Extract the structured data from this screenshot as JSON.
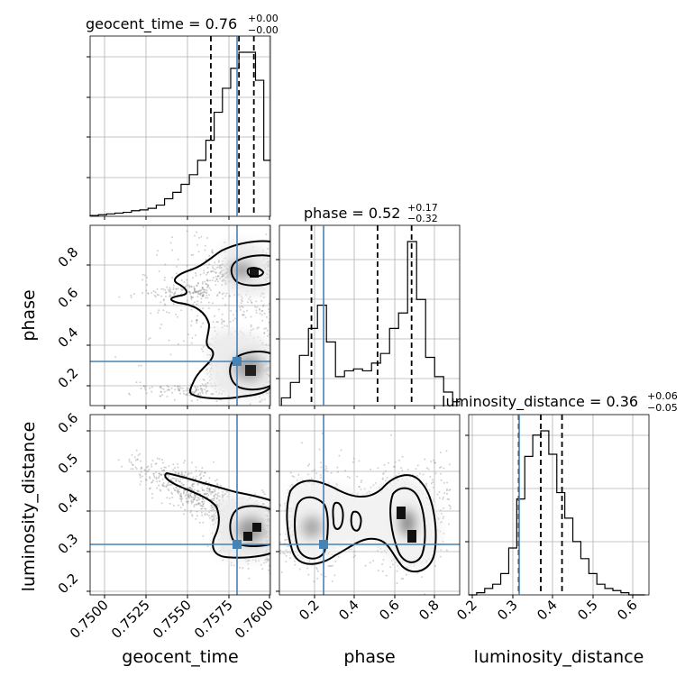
{
  "chart_data": {
    "type": "corner",
    "parameters": [
      "geocent_time",
      "phase",
      "luminosity_distance"
    ],
    "truth": {
      "geocent_time": 0.758,
      "phase": 0.25,
      "luminosity_distance": 0.315
    },
    "truth_color": "#4682b4",
    "panel_titles": [
      {
        "name": "geocent_time",
        "median": "0.76",
        "plus": "+0.00",
        "minus": "−0.00"
      },
      {
        "name": "phase",
        "median": "0.52",
        "plus": "+0.17",
        "minus": "−0.32"
      },
      {
        "name": "luminosity_distance",
        "median": "0.36",
        "plus": "+0.06",
        "minus": "−0.05"
      }
    ],
    "axes": {
      "geocent_time": {
        "range": [
          0.7492,
          0.7601
        ],
        "ticks": [
          0.75,
          0.7525,
          0.755,
          0.7575,
          0.76
        ],
        "tick_labels": [
          "0.7500",
          "0.7525",
          "0.7550",
          "0.7575",
          "0.7600"
        ],
        "xlabel": "geocent_time"
      },
      "phase": {
        "range": [
          0.03,
          0.93
        ],
        "ticks": [
          0.2,
          0.4,
          0.6,
          0.8
        ],
        "tick_labels": [
          "0.2",
          "0.4",
          "0.6",
          "0.8"
        ],
        "xlabel": "phase",
        "ylabel": "phase"
      },
      "luminosity_distance": {
        "range": [
          0.18,
          0.63
        ],
        "ticks": [
          0.2,
          0.3,
          0.4,
          0.5,
          0.6
        ],
        "tick_labels": [
          "0.2",
          "0.3",
          "0.4",
          "0.5",
          "0.6"
        ],
        "xlabel": "luminosity_distance",
        "ylabel": "luminosity_distance"
      }
    },
    "quantiles": {
      "geocent_time": [
        0.7565,
        0.7582,
        0.7591
      ],
      "phase": [
        0.19,
        0.52,
        0.69
      ],
      "luminosity_distance": [
        0.305,
        0.36,
        0.413
      ]
    },
    "histograms": {
      "geocent_time": {
        "edges": [
          0.7492,
          0.7497,
          0.7502,
          0.7507,
          0.7512,
          0.7517,
          0.7522,
          0.7527,
          0.7532,
          0.7537,
          0.7542,
          0.7547,
          0.7552,
          0.7557,
          0.7562,
          0.7567,
          0.7572,
          0.7577,
          0.7582,
          0.7587,
          0.7592,
          0.7597,
          0.7601
        ],
        "counts": [
          1,
          2,
          3,
          4,
          5,
          7,
          8,
          10,
          14,
          22,
          30,
          40,
          52,
          70,
          95,
          130,
          160,
          185,
          205,
          205,
          170,
          70
        ]
      },
      "phase": {
        "edges": [
          0.04,
          0.085,
          0.13,
          0.175,
          0.22,
          0.265,
          0.31,
          0.355,
          0.4,
          0.445,
          0.49,
          0.535,
          0.58,
          0.625,
          0.67,
          0.715,
          0.76,
          0.805,
          0.85,
          0.895,
          0.93
        ],
        "counts": [
          0.04,
          0.12,
          0.26,
          0.4,
          0.52,
          0.33,
          0.15,
          0.18,
          0.19,
          0.18,
          0.22,
          0.27,
          0.4,
          0.48,
          0.85,
          0.55,
          0.25,
          0.15,
          0.07,
          0.02
        ]
      },
      "luminosity_distance": {
        "edges": [
          0.18,
          0.2,
          0.22,
          0.24,
          0.26,
          0.28,
          0.3,
          0.32,
          0.34,
          0.36,
          0.38,
          0.4,
          0.42,
          0.44,
          0.46,
          0.48,
          0.5,
          0.52,
          0.54,
          0.56,
          0.58,
          0.6,
          0.62
        ],
        "counts": [
          0.0,
          0.01,
          0.03,
          0.05,
          0.1,
          0.22,
          0.45,
          0.65,
          0.75,
          0.77,
          0.66,
          0.48,
          0.36,
          0.25,
          0.17,
          0.1,
          0.05,
          0.03,
          0.02,
          0.01,
          0.0,
          0.0
        ]
      }
    },
    "grid": true
  }
}
